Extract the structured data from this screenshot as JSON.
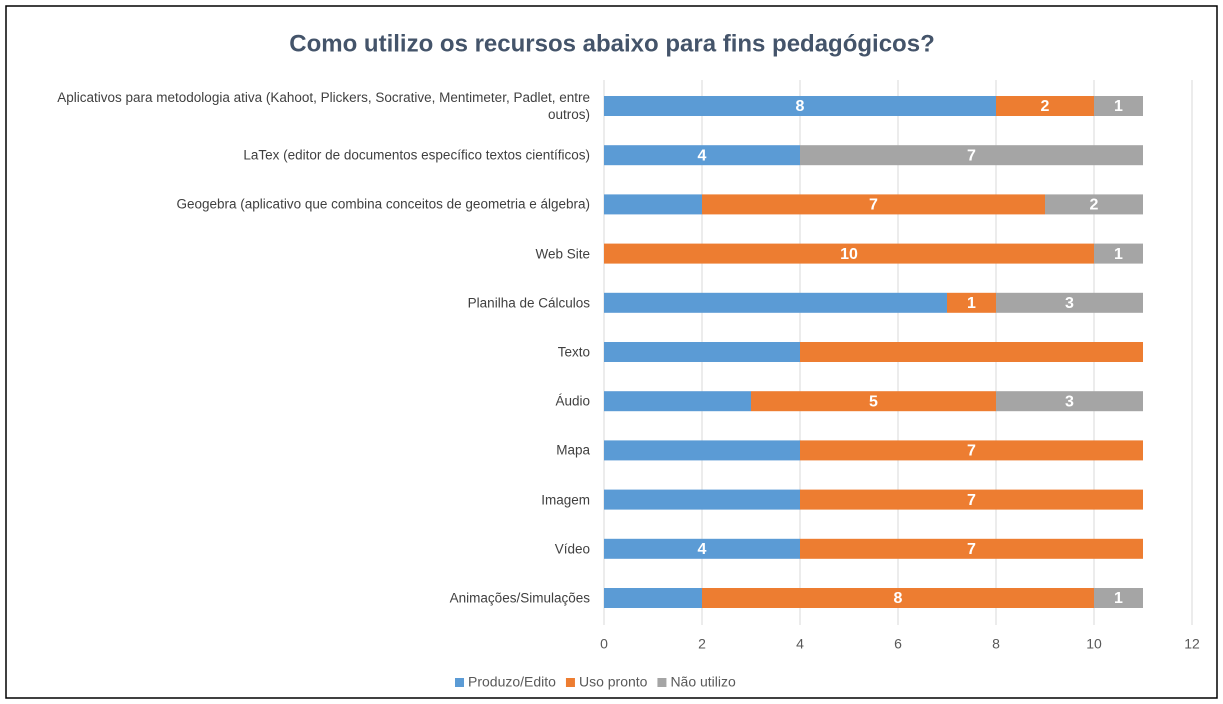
{
  "chart_data": {
    "type": "stacked_barh",
    "title": "Como utilizo os recursos abaixo para fins pedagógicos?",
    "categories": [
      "Aplicativos para metodologia ativa (Kahoot, Plickers, Socrative, Mentimeter, Padlet, entre outros)",
      "LaTex (editor de documentos específico textos científicos)",
      "Geogebra (aplicativo que combina conceitos de geometria e álgebra)",
      "Web Site",
      "Planilha de Cálculos",
      "Texto",
      "Áudio",
      "Mapa",
      "Imagem",
      "Vídeo",
      "Animações/Simulações"
    ],
    "series": [
      {
        "name": "Produzo/Edito",
        "color": "#5b9bd5",
        "values": [
          8,
          4,
          2,
          0,
          7,
          4,
          3,
          4,
          4,
          4,
          2
        ],
        "value_labels": [
          "8",
          "4",
          null,
          null,
          null,
          null,
          null,
          null,
          null,
          "4",
          null
        ]
      },
      {
        "name": "Uso pronto",
        "color": "#ed7d31",
        "values": [
          2,
          0,
          7,
          10,
          1,
          7,
          5,
          7,
          7,
          7,
          8
        ],
        "value_labels": [
          "2",
          null,
          "7",
          "10",
          "1",
          null,
          "5",
          "7",
          "7",
          "7",
          "8"
        ]
      },
      {
        "name": "Não utilizo",
        "color": "#a5a5a5",
        "values": [
          1,
          7,
          2,
          1,
          3,
          0,
          3,
          0,
          0,
          0,
          1
        ],
        "value_labels": [
          "1",
          "7",
          "2",
          "1",
          "3",
          null,
          "3",
          null,
          null,
          null,
          "1"
        ]
      }
    ],
    "xlim": [
      0,
      12
    ],
    "xticks": [
      0,
      2,
      4,
      6,
      8,
      10,
      12
    ],
    "grid": true,
    "legend": "bottom"
  }
}
